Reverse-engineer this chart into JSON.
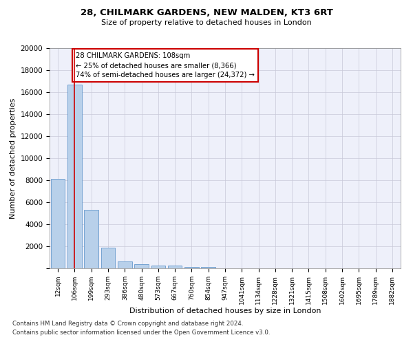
{
  "title": "28, CHILMARK GARDENS, NEW MALDEN, KT3 6RT",
  "subtitle": "Size of property relative to detached houses in London",
  "xlabel": "Distribution of detached houses by size in London",
  "ylabel": "Number of detached properties",
  "bar_color": "#b8d0ea",
  "bar_edge_color": "#6699cc",
  "grid_color": "#c8c8d8",
  "bg_color": "#eef0fa",
  "annotation_box_color": "#cc0000",
  "property_line_color": "#cc0000",
  "categories": [
    "12sqm",
    "106sqm",
    "199sqm",
    "293sqm",
    "386sqm",
    "480sqm",
    "573sqm",
    "667sqm",
    "760sqm",
    "854sqm",
    "947sqm",
    "1041sqm",
    "1134sqm",
    "1228sqm",
    "1321sqm",
    "1415sqm",
    "1508sqm",
    "1602sqm",
    "1695sqm",
    "1789sqm",
    "1882sqm"
  ],
  "values": [
    8100,
    16700,
    5300,
    1850,
    650,
    350,
    270,
    230,
    140,
    130,
    0,
    0,
    0,
    0,
    0,
    0,
    0,
    0,
    0,
    0,
    0
  ],
  "ylim": [
    0,
    20000
  ],
  "yticks": [
    0,
    2000,
    4000,
    6000,
    8000,
    10000,
    12000,
    14000,
    16000,
    18000,
    20000
  ],
  "property_line_x": 1.0,
  "annotation_line1": "28 CHILMARK GARDENS: 108sqm",
  "annotation_line2": "← 25% of detached houses are smaller (8,366)",
  "annotation_line3": "74% of semi-detached houses are larger (24,372) →",
  "footer_line1": "Contains HM Land Registry data © Crown copyright and database right 2024.",
  "footer_line2": "Contains public sector information licensed under the Open Government Licence v3.0."
}
